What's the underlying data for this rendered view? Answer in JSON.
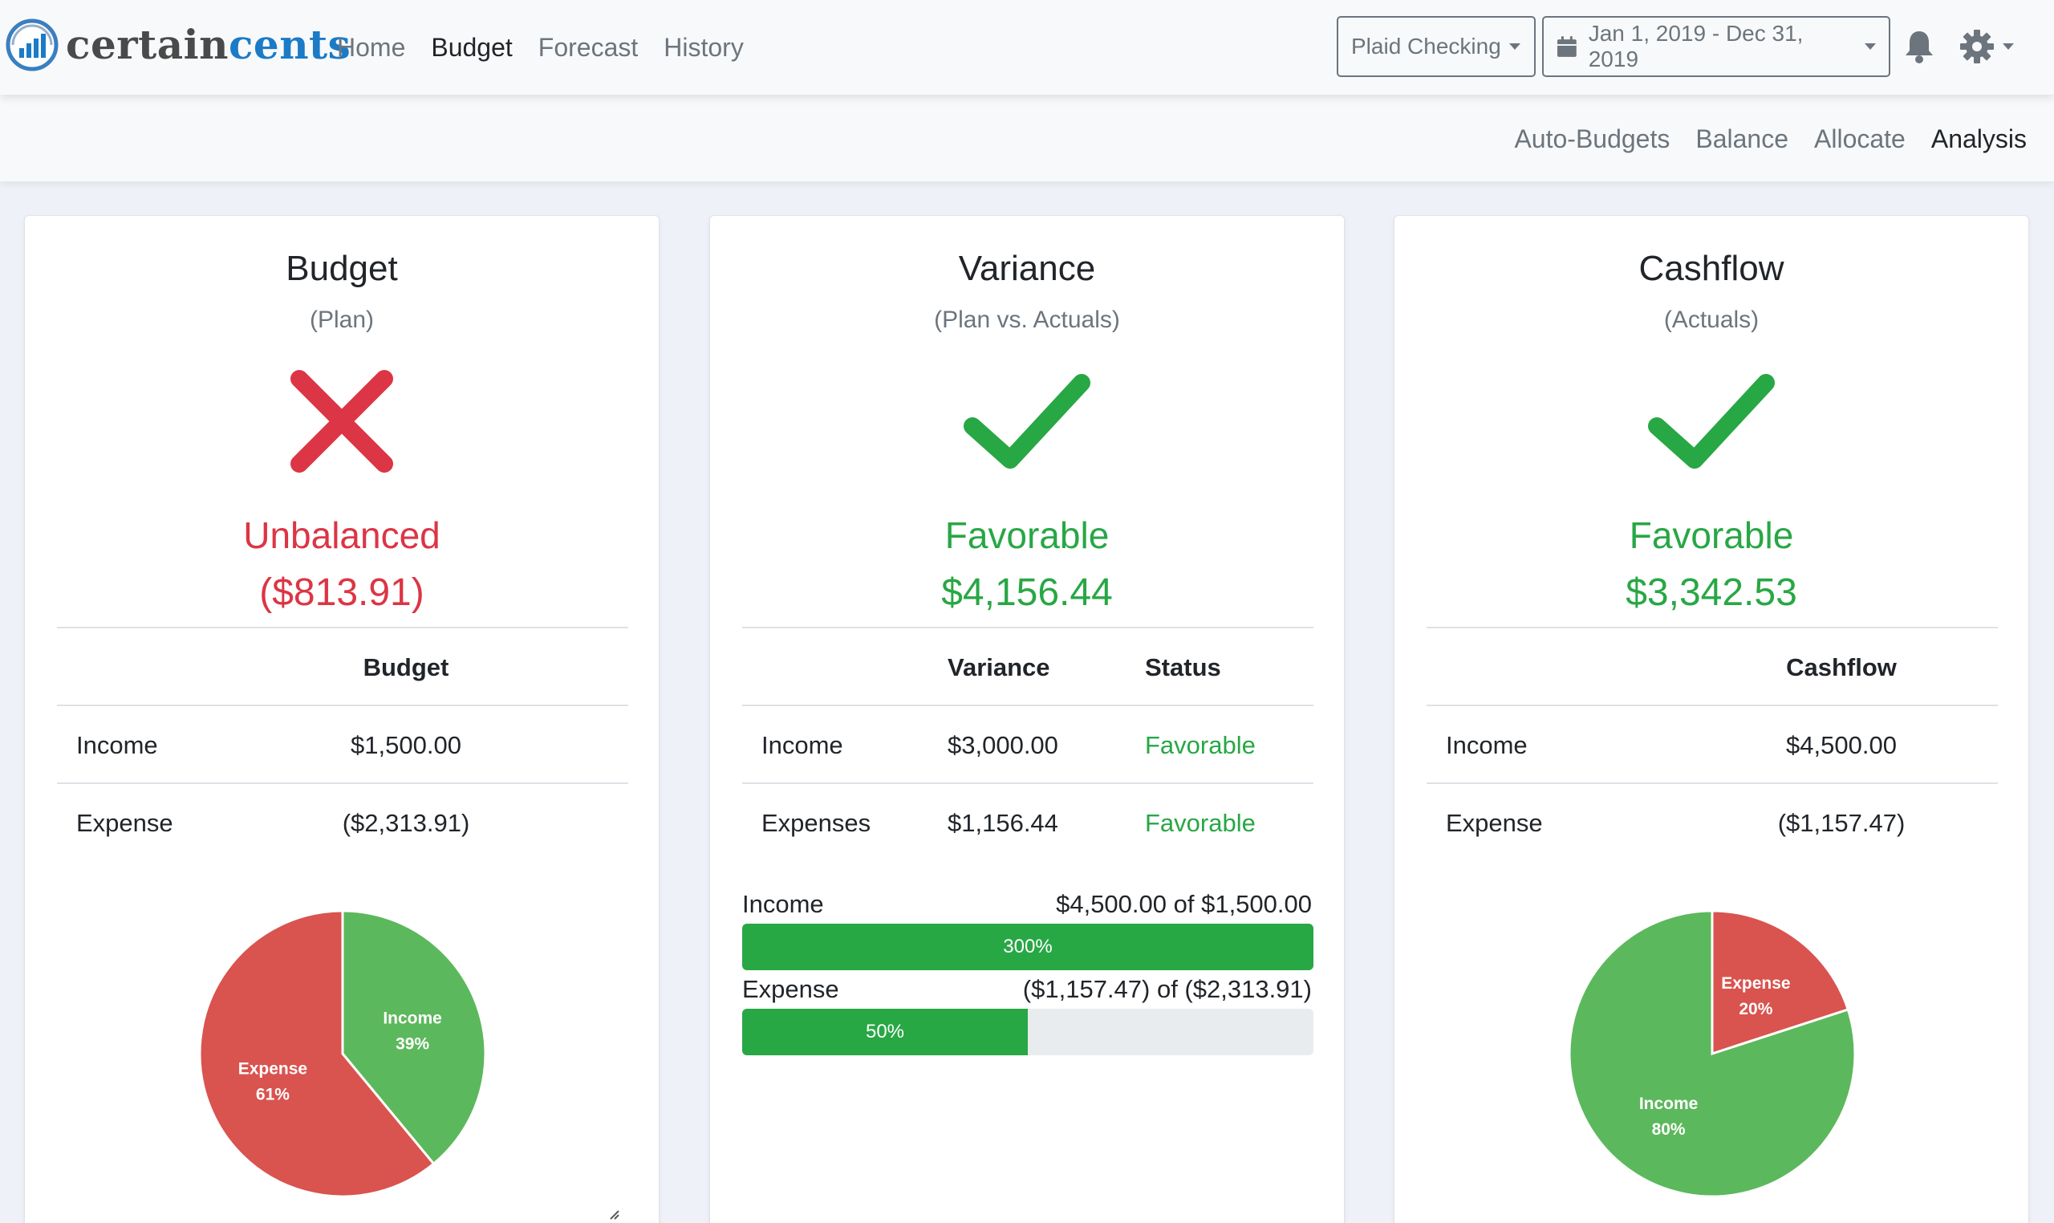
{
  "app": {
    "brand_part1": "certain",
    "brand_part2": "cents"
  },
  "nav": {
    "links": [
      "Home",
      "Budget",
      "Forecast",
      "History"
    ],
    "active": "Budget"
  },
  "account_select": {
    "label": "Plaid Checking"
  },
  "date_range": {
    "label": "Jan 1, 2019 - Dec 31, 2019"
  },
  "icons": {
    "brand": "chart-logo-icon",
    "calendar": "calendar-icon",
    "notifications": "bell-icon",
    "settings": "gear-icon"
  },
  "subnav": {
    "links": [
      "Auto-Budgets",
      "Balance",
      "Allocate",
      "Analysis"
    ],
    "active": "Analysis"
  },
  "colors": {
    "red": "#dc3545",
    "green": "#28a745",
    "pie_red": "#d9534f",
    "pie_green": "#5cb85c"
  },
  "budget_card": {
    "title": "Budget",
    "subtitle": "(Plan)",
    "status_icon": "x-icon",
    "status": "Unbalanced",
    "amount": "($813.91)",
    "table": {
      "header": "Budget",
      "rows": [
        {
          "label": "Income",
          "value": "$1,500.00"
        },
        {
          "label": "Expense",
          "value": "($2,313.91)"
        }
      ]
    },
    "pie": {
      "slices": [
        {
          "name": "Income",
          "percent": 39,
          "label": "39%"
        },
        {
          "name": "Expense",
          "percent": 61,
          "label": "61%"
        }
      ]
    }
  },
  "variance_card": {
    "title": "Variance",
    "subtitle": "(Plan vs. Actuals)",
    "status_icon": "check-icon",
    "status": "Favorable",
    "amount": "$4,156.44",
    "table": {
      "headers": [
        "Variance",
        "Status"
      ],
      "rows": [
        {
          "label": "Income",
          "value": "$3,000.00",
          "status": "Favorable"
        },
        {
          "label": "Expenses",
          "value": "$1,156.44",
          "status": "Favorable"
        }
      ]
    },
    "progress": [
      {
        "label": "Income",
        "detail": "$4,500.00 of $1,500.00",
        "percent": 300,
        "percent_label": "300%"
      },
      {
        "label": "Expense",
        "detail": "($1,157.47) of ($2,313.91)",
        "percent": 50,
        "percent_label": "50%"
      }
    ]
  },
  "cashflow_card": {
    "title": "Cashflow",
    "subtitle": "(Actuals)",
    "status_icon": "check-icon",
    "status": "Favorable",
    "amount": "$3,342.53",
    "table": {
      "header": "Cashflow",
      "rows": [
        {
          "label": "Income",
          "value": "$4,500.00"
        },
        {
          "label": "Expense",
          "value": "($1,157.47)"
        }
      ]
    },
    "pie": {
      "slices": [
        {
          "name": "Expense",
          "percent": 20,
          "label": "20%"
        },
        {
          "name": "Income",
          "percent": 80,
          "label": "80%"
        }
      ]
    }
  }
}
